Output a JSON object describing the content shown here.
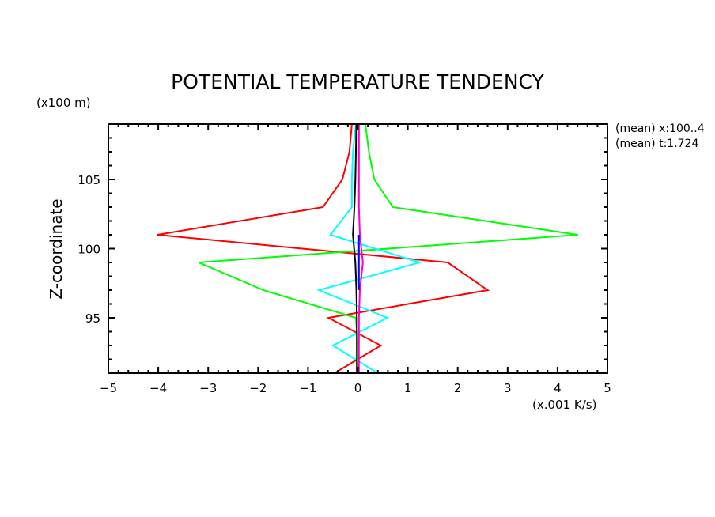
{
  "chart_data": {
    "type": "line",
    "title": "POTENTIAL TEMPERATURE TENDENCY",
    "xlabel": "(x.001 K/s)",
    "ylabel": "Z-coordinate",
    "yunits": "(x100 m)",
    "xlim": [
      -5,
      5
    ],
    "ylim": [
      91,
      109
    ],
    "xticks": [
      "-5",
      "-4",
      "-3",
      "-2",
      "-1",
      "0",
      "1",
      "2",
      "3",
      "4",
      "5"
    ],
    "xtick_values": [
      -5,
      -4,
      -3,
      -2,
      -1,
      0,
      1,
      2,
      3,
      4,
      5
    ],
    "yticks": [
      "95",
      "100",
      "105"
    ],
    "ytick_values": [
      95,
      100,
      105
    ],
    "annotations": [
      "(mean) x:100..4",
      "(mean) t:1.724"
    ],
    "grid": false,
    "z": [
      109,
      107,
      105,
      103,
      101,
      99,
      97,
      95,
      93,
      91
    ],
    "series": [
      {
        "name": "red",
        "color": "#ff0000",
        "values": [
          -0.12,
          -0.17,
          -0.31,
          -0.7,
          -4.02,
          1.8,
          2.6,
          -0.59,
          0.46,
          -0.47
        ]
      },
      {
        "name": "green",
        "color": "#00ff00",
        "values": [
          0.15,
          0.22,
          0.33,
          0.7,
          4.41,
          -3.19,
          -1.89,
          -0.04,
          0,
          0
        ]
      },
      {
        "name": "cyan",
        "color": "#00ffff",
        "values": [
          -0.04,
          -0.1,
          -0.12,
          -0.12,
          -0.55,
          1.24,
          -0.78,
          0.59,
          -0.5,
          0.4
        ]
      },
      {
        "name": "black",
        "color": "#000000",
        "values": [
          -0.03,
          -0.04,
          -0.05,
          -0.07,
          -0.1,
          -0.05,
          -0.03,
          -0.02,
          -0.02,
          -0.02
        ]
      },
      {
        "name": "magenta",
        "color": "#ff00cc",
        "values": [
          0.02,
          0.02,
          0.02,
          0.02,
          0.04,
          0.1,
          0.04,
          0.02,
          0.02,
          0.02
        ]
      },
      {
        "name": "blue",
        "color": "#0000ff",
        "z": [
          101,
          99,
          97
        ],
        "values": [
          0.02,
          0.02,
          0.02
        ]
      }
    ]
  }
}
